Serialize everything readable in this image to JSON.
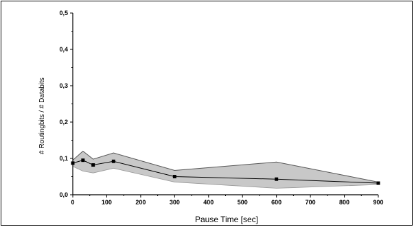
{
  "chart_data": {
    "type": "line",
    "title": "",
    "xlabel": "Pause Time [sec]",
    "ylabel": "# Routingbits / # Databits",
    "xlim": [
      0,
      900
    ],
    "ylim": [
      0,
      0.5
    ],
    "x_ticks": [
      "0",
      "100",
      "200",
      "300",
      "400",
      "500",
      "600",
      "700",
      "800",
      "900"
    ],
    "y_ticks": [
      "0,0",
      "0,1",
      "0,2",
      "0,3",
      "0,4",
      "0,5"
    ],
    "x": [
      0,
      30,
      60,
      120,
      300,
      600,
      900
    ],
    "series": [
      {
        "values": [
          0.087,
          0.095,
          0.082,
          0.092,
          0.05,
          0.043,
          0.032
        ]
      }
    ],
    "band": {
      "upper": [
        0.095,
        0.12,
        0.098,
        0.115,
        0.067,
        0.09,
        0.035
      ],
      "lower": [
        0.078,
        0.065,
        0.06,
        0.073,
        0.035,
        0.018,
        0.028
      ]
    },
    "colors": {
      "line": "#000000",
      "band": "#c8c8c8",
      "band_edge": "#555555"
    },
    "grid": false,
    "legend": "none"
  }
}
